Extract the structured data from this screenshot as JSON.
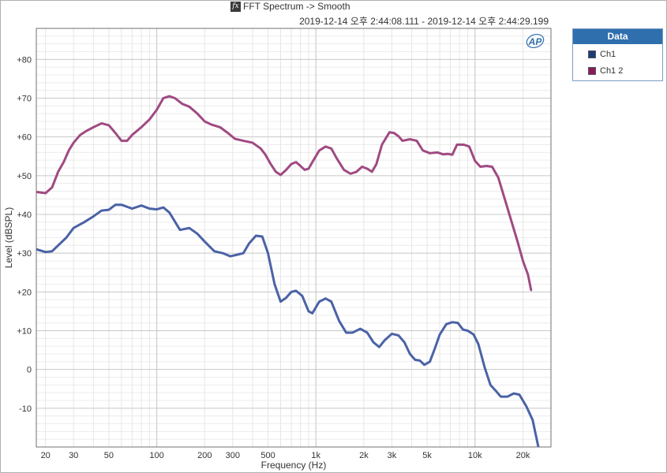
{
  "title": "FFT Spectrum -> Smooth",
  "subtitle": "2019-12-14 오후 2:44:08.111 - 2019-12-14 오후 2:44:29.199",
  "logo_text": "AP",
  "legend": {
    "header": "Data",
    "items": [
      {
        "label": "Ch1",
        "color": "#1f3a7a"
      },
      {
        "label": "Ch1 2",
        "color": "#8b1a5c"
      }
    ]
  },
  "chart_data": {
    "type": "line",
    "title": "FFT Spectrum -> Smooth",
    "xlabel": "Frequency (Hz)",
    "ylabel": "Level (dBSPL)",
    "xscale": "log",
    "xlim": [
      17.5,
      30000
    ],
    "ylim": [
      -20,
      88
    ],
    "grid": true,
    "xticks": [
      {
        "value": 20,
        "label": "20"
      },
      {
        "value": 30,
        "label": "30"
      },
      {
        "value": 50,
        "label": "50"
      },
      {
        "value": 100,
        "label": "100"
      },
      {
        "value": 200,
        "label": "200"
      },
      {
        "value": 300,
        "label": "300"
      },
      {
        "value": 500,
        "label": "500"
      },
      {
        "value": 1000,
        "label": "1k"
      },
      {
        "value": 2000,
        "label": "2k"
      },
      {
        "value": 3000,
        "label": "3k"
      },
      {
        "value": 5000,
        "label": "5k"
      },
      {
        "value": 10000,
        "label": "10k"
      },
      {
        "value": 20000,
        "label": "20k"
      }
    ],
    "yticks": [
      {
        "value": 80,
        "label": "+80"
      },
      {
        "value": 70,
        "label": "+70"
      },
      {
        "value": 60,
        "label": "+60"
      },
      {
        "value": 50,
        "label": "+50"
      },
      {
        "value": 40,
        "label": "+40"
      },
      {
        "value": 30,
        "label": "+30"
      },
      {
        "value": 20,
        "label": "+20"
      },
      {
        "value": 10,
        "label": "+10"
      },
      {
        "value": 0,
        "label": "0"
      },
      {
        "value": -10,
        "label": "-10"
      }
    ],
    "series": [
      {
        "name": "Ch1",
        "color": "#4a62a6",
        "points": [
          [
            17.5,
            31
          ],
          [
            20,
            30.3
          ],
          [
            22,
            30.5
          ],
          [
            24,
            32
          ],
          [
            27,
            34
          ],
          [
            30,
            36.5
          ],
          [
            35,
            38
          ],
          [
            40,
            39.5
          ],
          [
            45,
            41
          ],
          [
            50,
            41.2
          ],
          [
            55,
            42.5
          ],
          [
            60,
            42.5
          ],
          [
            70,
            41.5
          ],
          [
            80,
            42.3
          ],
          [
            90,
            41.5
          ],
          [
            100,
            41.3
          ],
          [
            110,
            41.8
          ],
          [
            120,
            40.5
          ],
          [
            140,
            36
          ],
          [
            160,
            36.5
          ],
          [
            180,
            35
          ],
          [
            200,
            33
          ],
          [
            230,
            30.5
          ],
          [
            260,
            30
          ],
          [
            290,
            29.2
          ],
          [
            320,
            29.6
          ],
          [
            350,
            30
          ],
          [
            380,
            32.5
          ],
          [
            420,
            34.5
          ],
          [
            460,
            34.3
          ],
          [
            500,
            30
          ],
          [
            550,
            22
          ],
          [
            600,
            17.5
          ],
          [
            650,
            18.5
          ],
          [
            700,
            20
          ],
          [
            750,
            20.3
          ],
          [
            820,
            19
          ],
          [
            900,
            15
          ],
          [
            950,
            14.5
          ],
          [
            1050,
            17.5
          ],
          [
            1150,
            18.3
          ],
          [
            1250,
            17.5
          ],
          [
            1400,
            12.5
          ],
          [
            1550,
            9.5
          ],
          [
            1700,
            9.5
          ],
          [
            1900,
            10.5
          ],
          [
            2100,
            9.5
          ],
          [
            2300,
            7
          ],
          [
            2500,
            5.8
          ],
          [
            2700,
            7.5
          ],
          [
            3000,
            9.2
          ],
          [
            3300,
            8.8
          ],
          [
            3600,
            7
          ],
          [
            3900,
            4
          ],
          [
            4200,
            2.5
          ],
          [
            4500,
            2.3
          ],
          [
            4800,
            1.2
          ],
          [
            5200,
            2
          ],
          [
            5600,
            5.5
          ],
          [
            6000,
            9
          ],
          [
            6600,
            11.7
          ],
          [
            7200,
            12.2
          ],
          [
            7800,
            12
          ],
          [
            8400,
            10.3
          ],
          [
            9000,
            10
          ],
          [
            9800,
            9
          ],
          [
            10500,
            6.5
          ],
          [
            11500,
            0.5
          ],
          [
            12500,
            -4
          ],
          [
            13500,
            -5.5
          ],
          [
            14500,
            -7
          ],
          [
            16000,
            -7
          ],
          [
            17500,
            -6.2
          ],
          [
            19000,
            -6.5
          ],
          [
            21000,
            -9.5
          ],
          [
            23000,
            -13
          ],
          [
            25000,
            -20
          ]
        ]
      },
      {
        "name": "Ch1 2",
        "color": "#a04a82",
        "points": [
          [
            17.5,
            45.8
          ],
          [
            20,
            45.5
          ],
          [
            22,
            47
          ],
          [
            24,
            51
          ],
          [
            26,
            53.5
          ],
          [
            28,
            56.5
          ],
          [
            30,
            58.5
          ],
          [
            33,
            60.5
          ],
          [
            36,
            61.5
          ],
          [
            40,
            62.5
          ],
          [
            45,
            63.5
          ],
          [
            50,
            63
          ],
          [
            55,
            61
          ],
          [
            60,
            59
          ],
          [
            65,
            59
          ],
          [
            70,
            60.5
          ],
          [
            80,
            62.5
          ],
          [
            90,
            64.5
          ],
          [
            100,
            67
          ],
          [
            110,
            70
          ],
          [
            120,
            70.5
          ],
          [
            130,
            70
          ],
          [
            145,
            68.5
          ],
          [
            160,
            67.8
          ],
          [
            180,
            66
          ],
          [
            200,
            64
          ],
          [
            220,
            63.2
          ],
          [
            250,
            62.5
          ],
          [
            280,
            61
          ],
          [
            310,
            59.5
          ],
          [
            350,
            59
          ],
          [
            400,
            58.5
          ],
          [
            450,
            57
          ],
          [
            480,
            55.5
          ],
          [
            520,
            53
          ],
          [
            560,
            51
          ],
          [
            600,
            50.2
          ],
          [
            650,
            51.5
          ],
          [
            700,
            53
          ],
          [
            750,
            53.5
          ],
          [
            800,
            52.5
          ],
          [
            850,
            51.5
          ],
          [
            900,
            51.8
          ],
          [
            950,
            53.5
          ],
          [
            1050,
            56.5
          ],
          [
            1150,
            57.5
          ],
          [
            1250,
            57
          ],
          [
            1350,
            54.5
          ],
          [
            1500,
            51.5
          ],
          [
            1650,
            50.5
          ],
          [
            1800,
            51
          ],
          [
            1950,
            52.3
          ],
          [
            2100,
            51.8
          ],
          [
            2250,
            51
          ],
          [
            2400,
            53
          ],
          [
            2600,
            58
          ],
          [
            2900,
            61.2
          ],
          [
            3100,
            61
          ],
          [
            3300,
            60.2
          ],
          [
            3500,
            59
          ],
          [
            3900,
            59.4
          ],
          [
            4300,
            59
          ],
          [
            4700,
            56.5
          ],
          [
            5200,
            55.8
          ],
          [
            5800,
            56
          ],
          [
            6300,
            55.5
          ],
          [
            6800,
            55.6
          ],
          [
            7200,
            55.4
          ],
          [
            7700,
            58
          ],
          [
            8500,
            58
          ],
          [
            9200,
            57.5
          ],
          [
            10000,
            53.8
          ],
          [
            10800,
            52.3
          ],
          [
            11800,
            52.5
          ],
          [
            12800,
            52.3
          ],
          [
            14000,
            49.5
          ],
          [
            15500,
            43.5
          ],
          [
            17000,
            38
          ],
          [
            18500,
            33
          ],
          [
            20000,
            28
          ],
          [
            21500,
            24.5
          ],
          [
            22500,
            20.5
          ]
        ]
      }
    ]
  }
}
